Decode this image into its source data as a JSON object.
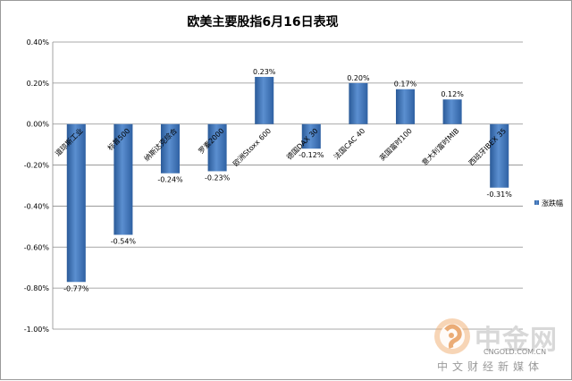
{
  "chart_data": {
    "type": "bar",
    "title": "欧美主要股指6月16日表现",
    "categories": [
      "道琼斯工业",
      "标普500",
      "纳斯达克综合",
      "罗素2000",
      "欧洲Stoxx 600",
      "德国DAX 30",
      "法国CAC 40",
      "英国富时100",
      "意大利富时MIB",
      "西班牙IBEX 35"
    ],
    "series": [
      {
        "name": "涨跌幅",
        "values": [
          -0.77,
          -0.54,
          -0.24,
          -0.23,
          0.23,
          -0.12,
          0.2,
          0.17,
          0.12,
          -0.31
        ]
      }
    ],
    "value_labels": [
      "-0.77%",
      "-0.54%",
      "-0.24%",
      "-0.23%",
      "0.23%",
      "-0.12%",
      "0.20%",
      "0.17%",
      "0.12%",
      "-0.31%"
    ],
    "y_ticks": [
      "0.40%",
      "0.20%",
      "0.00%",
      "-0.20%",
      "-0.40%",
      "-0.60%",
      "-0.80%",
      "-1.00%"
    ],
    "ylim": [
      -1.0,
      0.4
    ],
    "grid": true,
    "legend_position": "right",
    "bar_color": "#3d73b8"
  },
  "watermark": {
    "logo_text": "中金网",
    "domain": "CNGOLD.COM.CN",
    "slogan": "中文财经新媒体"
  }
}
